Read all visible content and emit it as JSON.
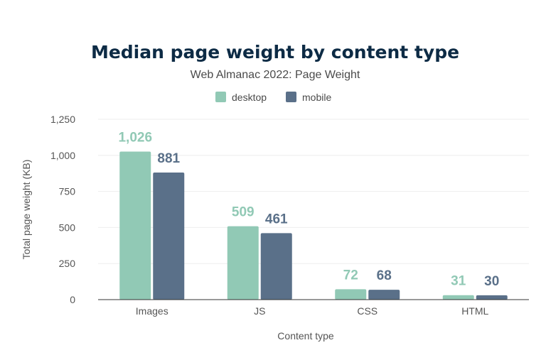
{
  "chart_data": {
    "type": "bar",
    "title": "Median page weight by content type",
    "subtitle": "Web Almanac 2022: Page Weight",
    "xlabel": "Content type",
    "ylabel": "Total page weight (KB)",
    "ylim": [
      0,
      1250
    ],
    "yticks": [
      0,
      250,
      500,
      750,
      1000,
      1250
    ],
    "ytick_labels": [
      "0",
      "250",
      "500",
      "750",
      "1,000",
      "1,250"
    ],
    "categories": [
      "Images",
      "JS",
      "CSS",
      "HTML"
    ],
    "series": [
      {
        "name": "desktop",
        "color": "#91c9b5",
        "values": [
          1026,
          509,
          72,
          31
        ],
        "labels": [
          "1,026",
          "509",
          "72",
          "31"
        ]
      },
      {
        "name": "mobile",
        "color": "#5a7089",
        "values": [
          881,
          461,
          68,
          30
        ],
        "labels": [
          "881",
          "461",
          "68",
          "30"
        ]
      }
    ],
    "legend_position": "top-center",
    "grid": true
  }
}
